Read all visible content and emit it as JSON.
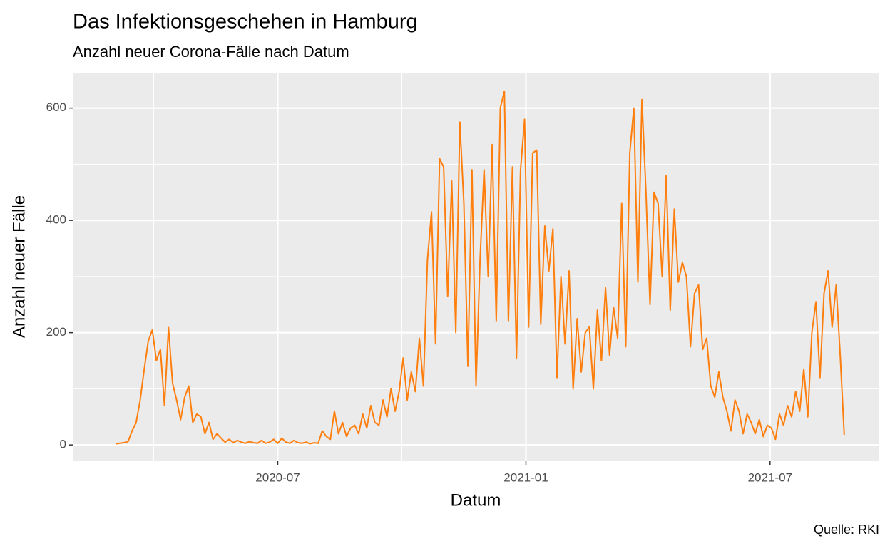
{
  "chart_data": {
    "type": "line",
    "title": "Das Infektionsgeschehen in Hamburg",
    "subtitle": "Anzahl neuer Corona-Fälle nach Datum",
    "x_label": "Datum",
    "y_label": "Anzahl neuer Fälle",
    "caption": "Quelle: RKI",
    "x": [
      "2020-03-03",
      "2020-03-06",
      "2020-03-09",
      "2020-03-12",
      "2020-03-15",
      "2020-03-18",
      "2020-03-21",
      "2020-03-24",
      "2020-03-27",
      "2020-03-30",
      "2020-04-02",
      "2020-04-05",
      "2020-04-08",
      "2020-04-11",
      "2020-04-14",
      "2020-04-17",
      "2020-04-20",
      "2020-04-23",
      "2020-04-26",
      "2020-04-29",
      "2020-05-02",
      "2020-05-05",
      "2020-05-08",
      "2020-05-11",
      "2020-05-14",
      "2020-05-17",
      "2020-05-20",
      "2020-05-23",
      "2020-05-26",
      "2020-05-29",
      "2020-06-01",
      "2020-06-04",
      "2020-06-07",
      "2020-06-10",
      "2020-06-13",
      "2020-06-16",
      "2020-06-19",
      "2020-06-22",
      "2020-06-25",
      "2020-06-28",
      "2020-07-01",
      "2020-07-04",
      "2020-07-07",
      "2020-07-10",
      "2020-07-13",
      "2020-07-16",
      "2020-07-19",
      "2020-07-22",
      "2020-07-25",
      "2020-07-28",
      "2020-07-31",
      "2020-08-03",
      "2020-08-06",
      "2020-08-09",
      "2020-08-12",
      "2020-08-15",
      "2020-08-18",
      "2020-08-21",
      "2020-08-24",
      "2020-08-27",
      "2020-08-30",
      "2020-09-02",
      "2020-09-05",
      "2020-09-08",
      "2020-09-11",
      "2020-09-14",
      "2020-09-17",
      "2020-09-20",
      "2020-09-23",
      "2020-09-26",
      "2020-09-29",
      "2020-10-02",
      "2020-10-05",
      "2020-10-08",
      "2020-10-11",
      "2020-10-14",
      "2020-10-17",
      "2020-10-20",
      "2020-10-23",
      "2020-10-26",
      "2020-10-29",
      "2020-11-01",
      "2020-11-04",
      "2020-11-07",
      "2020-11-10",
      "2020-11-13",
      "2020-11-16",
      "2020-11-19",
      "2020-11-22",
      "2020-11-25",
      "2020-11-28",
      "2020-12-01",
      "2020-12-04",
      "2020-12-07",
      "2020-12-10",
      "2020-12-13",
      "2020-12-16",
      "2020-12-19",
      "2020-12-22",
      "2020-12-25",
      "2020-12-28",
      "2020-12-31",
      "2021-01-03",
      "2021-01-06",
      "2021-01-09",
      "2021-01-12",
      "2021-01-15",
      "2021-01-18",
      "2021-01-21",
      "2021-01-24",
      "2021-01-27",
      "2021-01-30",
      "2021-02-02",
      "2021-02-05",
      "2021-02-08",
      "2021-02-11",
      "2021-02-14",
      "2021-02-17",
      "2021-02-20",
      "2021-02-23",
      "2021-02-26",
      "2021-03-01",
      "2021-03-04",
      "2021-03-07",
      "2021-03-10",
      "2021-03-13",
      "2021-03-16",
      "2021-03-19",
      "2021-03-22",
      "2021-03-25",
      "2021-03-28",
      "2021-03-31",
      "2021-04-03",
      "2021-04-06",
      "2021-04-09",
      "2021-04-12",
      "2021-04-15",
      "2021-04-18",
      "2021-04-21",
      "2021-04-24",
      "2021-04-27",
      "2021-04-30",
      "2021-05-03",
      "2021-05-06",
      "2021-05-09",
      "2021-05-12",
      "2021-05-15",
      "2021-05-18",
      "2021-05-21",
      "2021-05-24",
      "2021-05-27",
      "2021-05-30",
      "2021-06-02",
      "2021-06-05",
      "2021-06-08",
      "2021-06-11",
      "2021-06-14",
      "2021-06-17",
      "2021-06-20",
      "2021-06-23",
      "2021-06-26",
      "2021-06-29",
      "2021-07-02",
      "2021-07-05",
      "2021-07-08",
      "2021-07-11",
      "2021-07-14",
      "2021-07-17",
      "2021-07-20",
      "2021-07-23",
      "2021-07-26",
      "2021-07-29",
      "2021-08-01",
      "2021-08-04",
      "2021-08-07",
      "2021-08-10",
      "2021-08-13",
      "2021-08-16",
      "2021-08-19",
      "2021-08-22",
      "2021-08-25"
    ],
    "series": [
      {
        "color": "#ff7f0e",
        "values": [
          2,
          3,
          4,
          6,
          25,
          40,
          80,
          135,
          185,
          205,
          150,
          170,
          70,
          209,
          110,
          80,
          45,
          85,
          105,
          40,
          55,
          50,
          20,
          40,
          10,
          20,
          12,
          5,
          10,
          4,
          8,
          5,
          3,
          6,
          4,
          3,
          8,
          3,
          5,
          10,
          3,
          12,
          5,
          3,
          8,
          4,
          3,
          5,
          2,
          4,
          3,
          25,
          15,
          10,
          60,
          20,
          40,
          15,
          30,
          35,
          20,
          55,
          30,
          70,
          40,
          35,
          80,
          50,
          100,
          60,
          95,
          155,
          80,
          130,
          95,
          190,
          105,
          330,
          415,
          180,
          510,
          495,
          265,
          470,
          200,
          575,
          430,
          140,
          490,
          105,
          330,
          490,
          300,
          535,
          220,
          600,
          630,
          220,
          495,
          155,
          490,
          580,
          210,
          520,
          525,
          215,
          390,
          310,
          385,
          120,
          300,
          180,
          310,
          100,
          225,
          130,
          200,
          210,
          100,
          240,
          150,
          280,
          160,
          245,
          190,
          430,
          175,
          520,
          600,
          290,
          615,
          450,
          250,
          450,
          430,
          300,
          480,
          240,
          420,
          290,
          325,
          300,
          175,
          270,
          285,
          170,
          190,
          105,
          85,
          130,
          85,
          60,
          25,
          80,
          60,
          20,
          55,
          40,
          20,
          45,
          15,
          35,
          30,
          10,
          55,
          35,
          70,
          50,
          95,
          60,
          135,
          50,
          200,
          255,
          120,
          270,
          310,
          210,
          285,
          160,
          18
        ]
      }
    ],
    "xlim": [
      "2020-01-31",
      "2021-09-20"
    ],
    "xticks": [
      "2020-07",
      "2021-01",
      "2021-07"
    ],
    "ylim": [
      -29,
      663
    ],
    "yticks": [
      0,
      200,
      400,
      600
    ],
    "grid": true
  }
}
